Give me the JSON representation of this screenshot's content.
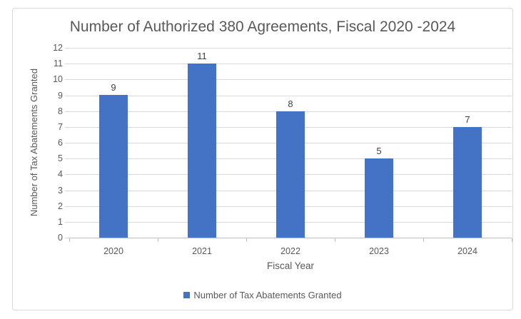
{
  "chart": {
    "title": "Number of Authorized 380 Agreements, Fiscal 2020 -2024",
    "x_axis_title": "Fiscal Year",
    "y_axis_title": "Number of Tax Abatements Granted",
    "legend_label": "Number of Tax Abatements Granted"
  },
  "chart_data": {
    "type": "bar",
    "title": "Number of Authorized 380 Agreements, Fiscal 2020 -2024",
    "categories": [
      "2020",
      "2021",
      "2022",
      "2023",
      "2024"
    ],
    "values": [
      9,
      11,
      8,
      5,
      7
    ],
    "data_labels": [
      9,
      11,
      8,
      5,
      7
    ],
    "xlabel": "Fiscal Year",
    "ylabel": "Number of Tax Abatements Granted",
    "ylim": [
      0,
      12
    ],
    "ytick_step": 1,
    "grid": true,
    "legend": [
      "Number of Tax Abatements Granted"
    ],
    "legend_position": "bottom"
  },
  "colors": {
    "bar": "#4472C4",
    "text": "#595959",
    "grid": "#D9D9D9",
    "axis": "#BFBFBF",
    "value_label": "#404040",
    "border": "#D9D9D9"
  }
}
